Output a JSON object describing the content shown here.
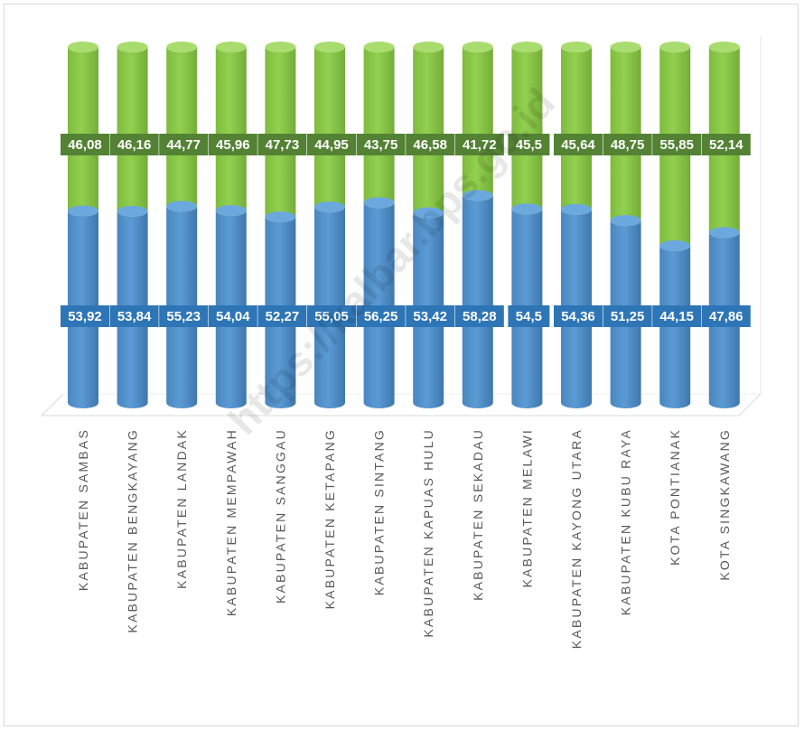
{
  "chart_data": {
    "type": "bar",
    "stacked": true,
    "percent": true,
    "style": "3d-cylinder",
    "categories": [
      "KABUPATEN SAMBAS",
      "KABUPATEN BENGKAYANG",
      "KABUPATEN LANDAK",
      "KABUPATEN MEMPAWAH",
      "KABUPATEN SANGGAU",
      "KABUPATEN KETAPANG",
      "KABUPATEN SINTANG",
      "KABUPATEN KAPUAS HULU",
      "KABUPATEN SEKADAU",
      "KABUPATEN MELAWI",
      "KABUPATEN KAYONG UTARA",
      "KABUPATEN KUBU RAYA",
      "KOTA PONTIANAK",
      "KOTA SINGKAWANG"
    ],
    "series": [
      {
        "color": "#5B9BD5",
        "label_color": "#2E75B6",
        "values": [
          53.92,
          53.84,
          55.23,
          54.04,
          52.27,
          55.05,
          56.25,
          53.42,
          58.28,
          54.5,
          54.36,
          51.25,
          44.15,
          47.86
        ],
        "labels": [
          "53,92",
          "53,84",
          "55,23",
          "54,04",
          "52,27",
          "55,05",
          "56,25",
          "53,42",
          "58,28",
          "54,5",
          "54,36",
          "51,25",
          "44,15",
          "47,86"
        ]
      },
      {
        "color": "#92D050",
        "label_color": "#548235",
        "values": [
          46.08,
          46.16,
          44.77,
          45.96,
          47.73,
          44.95,
          43.75,
          46.58,
          41.72,
          45.5,
          45.64,
          48.75,
          55.85,
          52.14
        ],
        "labels": [
          "46,08",
          "46,16",
          "44,77",
          "45,96",
          "47,73",
          "44,95",
          "43,75",
          "46,58",
          "41,72",
          "45,5",
          "45,64",
          "48,75",
          "55,85",
          "52,14"
        ]
      }
    ],
    "ylim": [
      0,
      100
    ],
    "grid": false,
    "legend": "none",
    "watermark": "https://kalbar.bps.go.id"
  }
}
